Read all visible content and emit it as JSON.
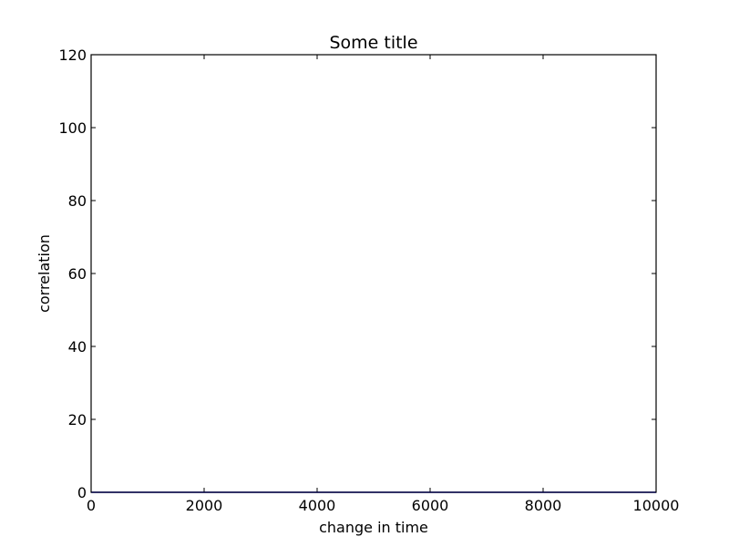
{
  "chart_data": {
    "type": "line",
    "title": "Some title",
    "xlabel": "change in time",
    "ylabel": "correlation",
    "xlim": [
      0,
      10000
    ],
    "ylim": [
      0,
      120
    ],
    "x_ticks": [
      0,
      2000,
      4000,
      6000,
      8000,
      10000
    ],
    "y_ticks": [
      0,
      20,
      40,
      60,
      80,
      100,
      120
    ],
    "x_tick_labels": [
      "0",
      "2000",
      "4000",
      "6000",
      "8000",
      "10000"
    ],
    "y_tick_labels": [
      "0",
      "20",
      "40",
      "60",
      "80",
      "100",
      "120"
    ],
    "grid": false,
    "series": [
      {
        "color": "#0000ff",
        "x": [
          0,
          10000
        ],
        "y": [
          0,
          0
        ]
      }
    ]
  }
}
